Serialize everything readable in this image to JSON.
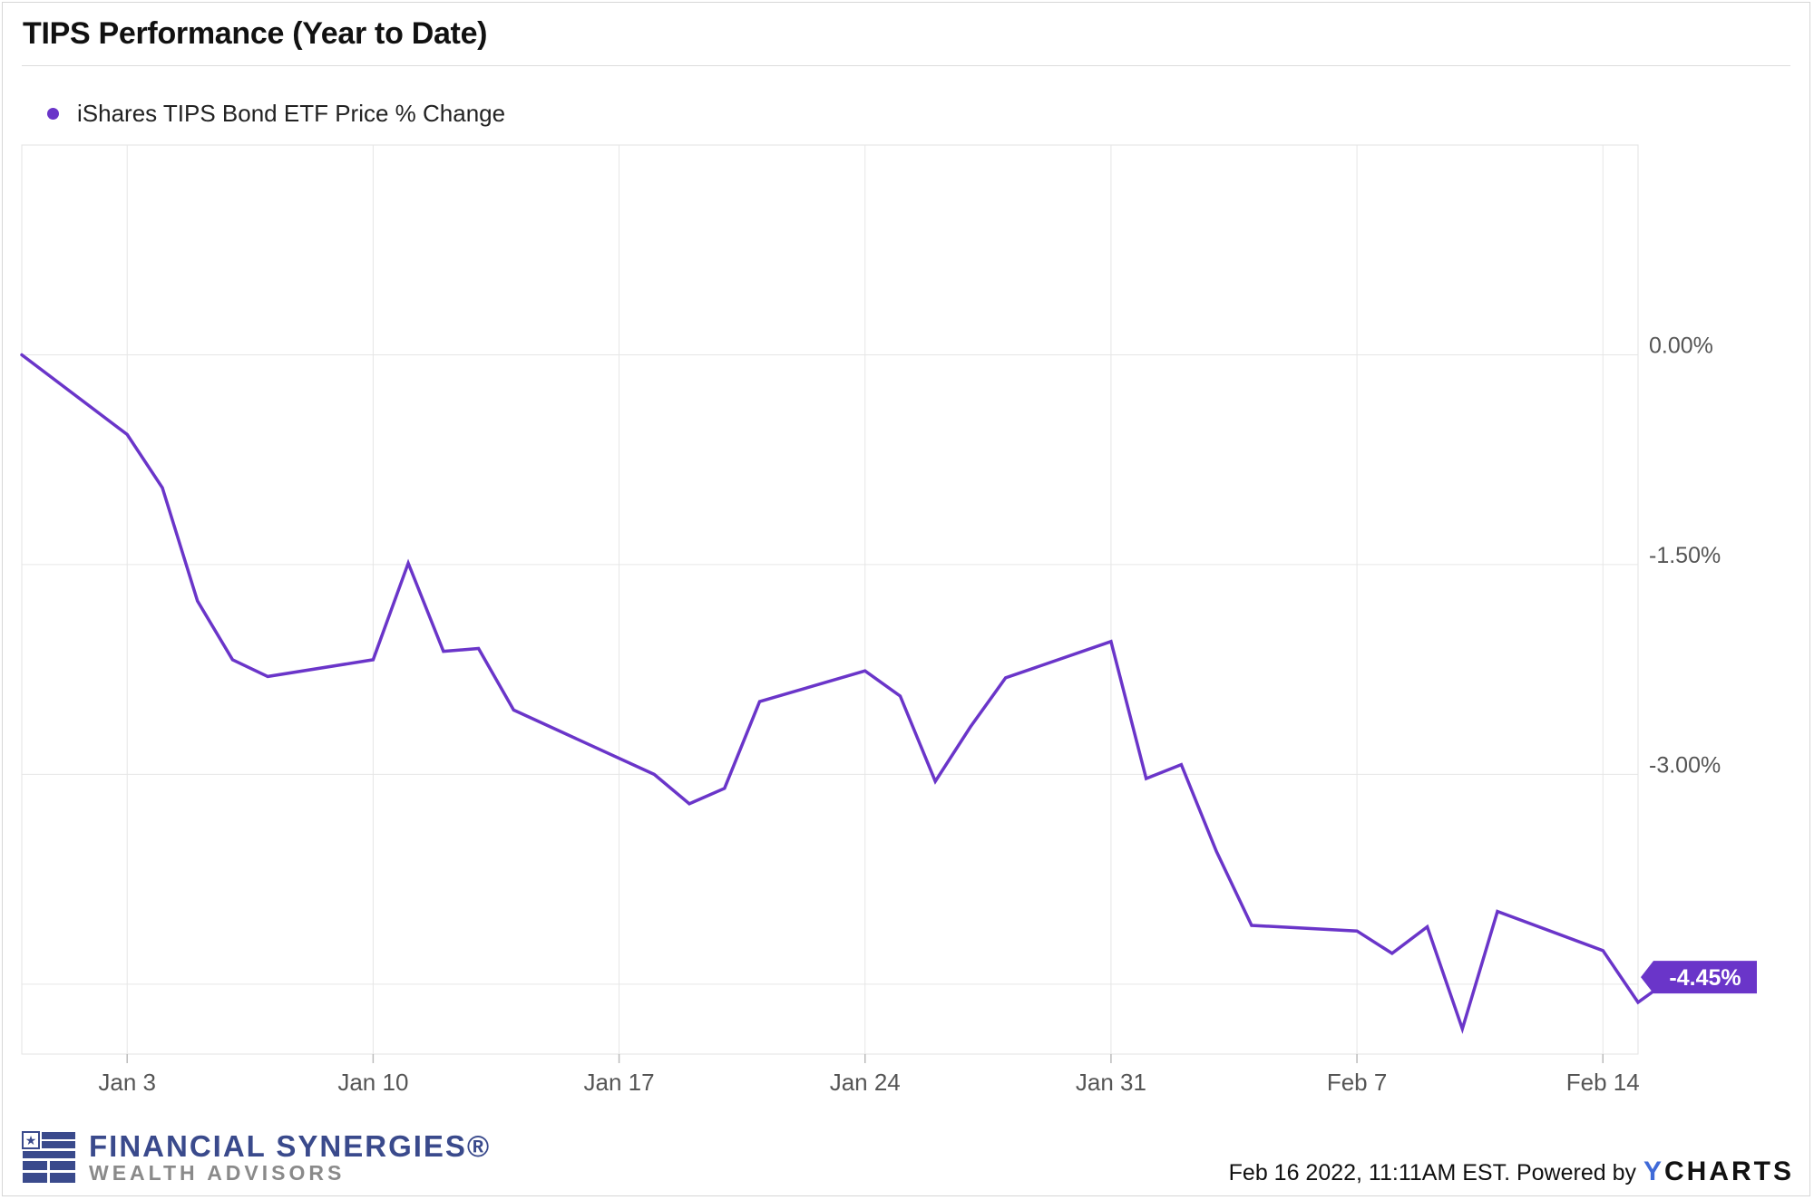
{
  "title": "TIPS Performance (Year to Date)",
  "colors": {
    "series": "#6a35c9",
    "grid": "#e6e6e6",
    "axis_text": "#555555",
    "brand": "#3a4a8c"
  },
  "chart_data": {
    "type": "line",
    "title": "TIPS Performance (Year to Date)",
    "xlabel": "",
    "ylabel": "",
    "x_ticks": [
      "Jan 3",
      "Jan 10",
      "Jan 17",
      "Jan 24",
      "Jan 31",
      "Feb 7",
      "Feb 14"
    ],
    "y_ticks": [
      "0.00%",
      "-1.50%",
      "-3.00%"
    ],
    "y_tick_values": [
      0,
      -1.5,
      -3.0
    ],
    "ylim": [
      -5.0,
      1.5
    ],
    "xlim": [
      "2021-12-31",
      "2022-02-15"
    ],
    "grid": true,
    "legend_position": "top-left",
    "series": [
      {
        "name": "iShares TIPS Bond ETF Price % Change",
        "color": "#6a35c9",
        "points": [
          [
            "2021-12-31",
            0.0
          ],
          [
            "2022-01-03",
            -0.57
          ],
          [
            "2022-01-04",
            -0.95
          ],
          [
            "2022-01-05",
            -1.76
          ],
          [
            "2022-01-06",
            -2.18
          ],
          [
            "2022-01-07",
            -2.3
          ],
          [
            "2022-01-10",
            -2.18
          ],
          [
            "2022-01-11",
            -1.49
          ],
          [
            "2022-01-12",
            -2.12
          ],
          [
            "2022-01-13",
            -2.1
          ],
          [
            "2022-01-14",
            -2.54
          ],
          [
            "2022-01-18",
            -3.0
          ],
          [
            "2022-01-19",
            -3.21
          ],
          [
            "2022-01-20",
            -3.1
          ],
          [
            "2022-01-21",
            -2.48
          ],
          [
            "2022-01-24",
            -2.26
          ],
          [
            "2022-01-25",
            -2.44
          ],
          [
            "2022-01-26",
            -3.05
          ],
          [
            "2022-01-27",
            -2.66
          ],
          [
            "2022-01-28",
            -2.31
          ],
          [
            "2022-01-31",
            -2.05
          ],
          [
            "2022-02-01",
            -3.03
          ],
          [
            "2022-02-02",
            -2.93
          ],
          [
            "2022-02-03",
            -3.55
          ],
          [
            "2022-02-04",
            -4.08
          ],
          [
            "2022-02-07",
            -4.12
          ],
          [
            "2022-02-08",
            -4.28
          ],
          [
            "2022-02-09",
            -4.09
          ],
          [
            "2022-02-10",
            -4.82
          ],
          [
            "2022-02-11",
            -3.98
          ],
          [
            "2022-02-14",
            -4.26
          ],
          [
            "2022-02-15",
            -4.63
          ],
          [
            "2022-02-16",
            -4.45
          ]
        ]
      }
    ],
    "annotations": [
      {
        "label": "-4.45%",
        "value": -4.45
      }
    ]
  },
  "footer": {
    "brand_name": "FINANCIAL SYNERGIES®",
    "brand_sub": "WEALTH ADVISORS",
    "timestamp": "Feb 16 2022, 11:11AM EST. Powered by",
    "ycharts_y": "Y",
    "ycharts_rest": "CHARTS"
  }
}
